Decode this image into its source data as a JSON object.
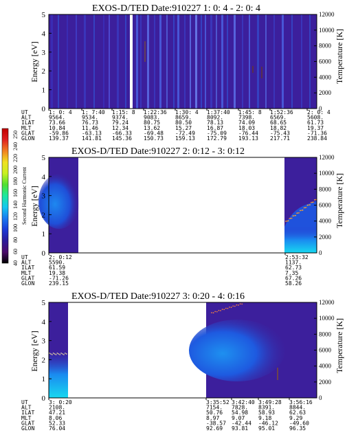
{
  "panels": [
    {
      "title": "EXOS-D/TED   Date:910227  1: 0: 4 - 2: 0: 4",
      "ylabel": "Energy [eV]",
      "y2label": "Temperature [K]",
      "ephem": {
        "labels": [
          "UT",
          "ALT",
          "ILAT",
          "MLT",
          "GLAT",
          "GLON"
        ],
        "columns": [
          [
            "1: 0: 4",
            "9564.",
            "73.66",
            "10.84",
            "-59.86",
            "139.37"
          ],
          [
            "1: 7:40",
            "9534.",
            "76.73",
            "11.46",
            "-63.13",
            "141.81"
          ],
          [
            "1:15: 8",
            "9374.",
            "79.24",
            "12.34",
            "-66.33",
            "145.36"
          ],
          [
            "1:22:36",
            "9083.",
            "80.75",
            "13.62",
            "-69.48",
            "150.73"
          ],
          [
            "1:30: 4",
            "8659.",
            "80.50",
            "15.27",
            "-72.49",
            "159.13"
          ],
          [
            "1:37:40",
            "8092.",
            "78.13",
            "16.87",
            "-75.09",
            "172.79"
          ],
          [
            "1:45: 8",
            "7398.",
            "74.09",
            "18.03",
            "-76.44",
            "193.13"
          ],
          [
            "1:52:36",
            "6569.",
            "68.65",
            "18.82",
            "-75.43",
            "217.71"
          ],
          [
            "2: 0: 4",
            "5608.",
            "61.73",
            "19.37",
            "-71.36",
            "238.84"
          ]
        ]
      }
    },
    {
      "title": "EXOS-D/TED   Date:910227  2: 0:12 - 3: 0:12",
      "ylabel": "Energy [eV]",
      "y2label": "Temperature [K]",
      "ephem": {
        "labels": [
          "UT",
          "ALT",
          "ILAT",
          "MLT",
          "GLAT",
          "GLON"
        ],
        "columns": [
          [
            "2: 0:12",
            "5590.",
            "61.59",
            "19.38",
            "-71.26",
            "239.15"
          ],
          [
            "2:53:32",
            "1137.",
            "62.73",
            "7.35",
            "67.26",
            "58.26"
          ]
        ]
      }
    },
    {
      "title": "EXOS-D/TED   Date:910227  3: 0:20 - 4: 0:16",
      "ylabel": "Energy [eV]",
      "y2label": "Temperature [K]",
      "ephem": {
        "labels": [
          "UT",
          "ALT",
          "ILAT",
          "MLT",
          "GLAT",
          "GLON"
        ],
        "columns": [
          [
            "3: 0:20",
            "2108.",
            "47.21",
            "8.06",
            "52.33",
            "76.04"
          ],
          [
            "3:35:52",
            "7154.",
            "50.76",
            "8.97",
            "-38.57",
            "92.69"
          ],
          [
            "3:42:40",
            "7828.",
            "54.98",
            "9.07",
            "-42.44",
            "93.81"
          ],
          [
            "3:49:28",
            "8391.",
            "58.93",
            "9.18",
            "-46.12",
            "95.01"
          ],
          [
            "3:56:16",
            "8844.",
            "62.63",
            "9.29",
            "-49.60",
            "96.35"
          ]
        ]
      }
    }
  ],
  "colorbar": {
    "label": "Second Harmonic Current",
    "ticks": [
      "40",
      "60",
      "80",
      "100",
      "120",
      "140",
      "160",
      "180",
      "200",
      "220",
      "240",
      "250"
    ],
    "colors": [
      "#000000",
      "#4a0a6a",
      "#2a1a9a",
      "#1a3ad8",
      "#1a7af0",
      "#14c8f0",
      "#1ae8a0",
      "#50e030",
      "#c8f020",
      "#f0e020",
      "#f08020",
      "#e02020",
      "#c00000"
    ]
  },
  "chart_data": [
    {
      "type": "heatmap",
      "title": "EXOS-D/TED   Date:910227  1: 0: 4 - 2: 0: 4",
      "ylabel": "Energy [eV]",
      "y2label": "Temperature [K]",
      "ylim": [
        0,
        5
      ],
      "y2lim": [
        0,
        12000
      ],
      "yticks": [
        0,
        1,
        2,
        3,
        4,
        5
      ],
      "y2ticks": [
        0,
        2000,
        4000,
        6000,
        8000,
        10000,
        12000
      ],
      "xticks": [
        "1: 0: 4",
        "1: 7:40",
        "1:15: 8",
        "1:22:36",
        "1:30: 4",
        "1:37:40",
        "1:45: 8",
        "1:52:36",
        "2: 0: 4"
      ]
    },
    {
      "type": "heatmap",
      "title": "EXOS-D/TED   Date:910227  2: 0:12 - 3: 0:12",
      "ylabel": "Energy [eV]",
      "y2label": "Temperature [K]",
      "ylim": [
        0,
        5
      ],
      "y2lim": [
        0,
        12000
      ],
      "yticks": [
        0,
        1,
        2,
        3,
        4,
        5
      ],
      "y2ticks": [
        0,
        2000,
        4000,
        6000,
        8000,
        10000,
        12000
      ],
      "xticks": [
        "2: 0:12",
        "2:53:32"
      ]
    },
    {
      "type": "heatmap",
      "title": "EXOS-D/TED   Date:910227  3: 0:20 - 4: 0:16",
      "ylabel": "Energy [eV]",
      "y2label": "Temperature [K]",
      "ylim": [
        0,
        5
      ],
      "y2lim": [
        0,
        12000
      ],
      "yticks": [
        0,
        1,
        2,
        3,
        4,
        5
      ],
      "y2ticks": [
        0,
        2000,
        4000,
        6000,
        8000,
        10000,
        12000
      ],
      "xticks": [
        "3: 0:20",
        "3:35:52",
        "3:42:40",
        "3:49:28",
        "3:56:16"
      ]
    }
  ]
}
